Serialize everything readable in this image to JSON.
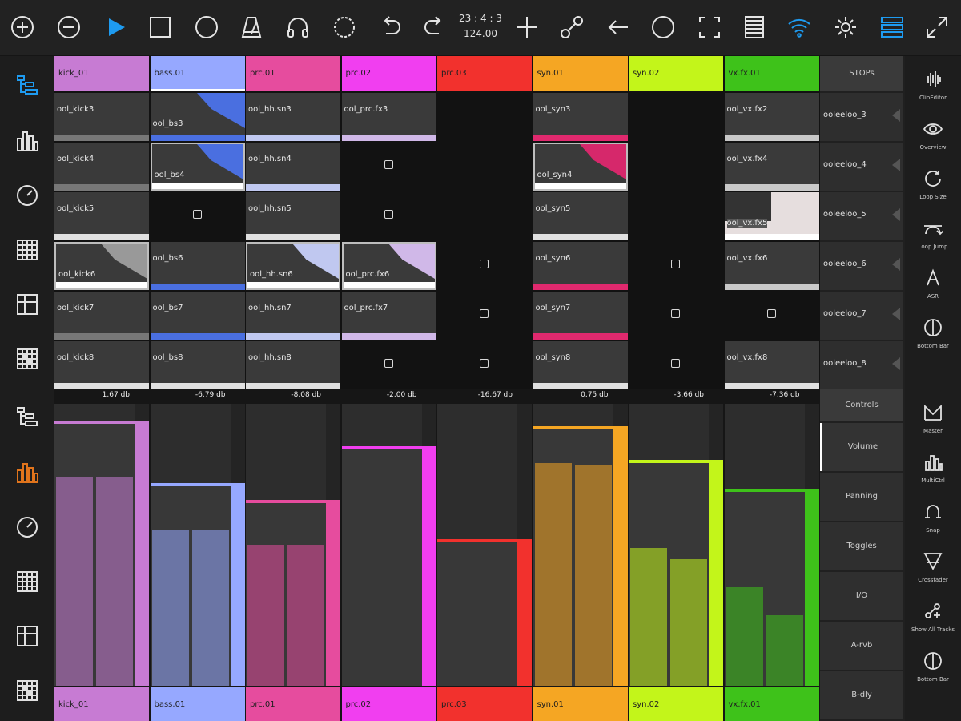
{
  "toolbar": {
    "icons": [
      "add-icon",
      "remove-icon",
      "play-icon",
      "stop-icon",
      "record-icon",
      "metronome-icon",
      "headphones-icon",
      "count-in-icon",
      "undo-icon",
      "redo-icon",
      "clock",
      "add-track-icon",
      "link-icon",
      "back-arrow-icon",
      "circle-icon",
      "fullscreen-select-icon",
      "list-icon",
      "wifi-icon",
      "settings-icon",
      "menu-icon",
      "expand-icon"
    ],
    "clock_position": "23 : 4 : 3",
    "clock_bpm": "124.00",
    "play_color": "#1e9bf0",
    "wifi_color": "#1e9bf0",
    "menu_color": "#1e9bf0"
  },
  "stop_all_label": "STOPs",
  "tracks": [
    {
      "name": "kick_01",
      "color": "#c77bd3",
      "selected": false
    },
    {
      "name": "bass.01",
      "color": "#96a8ff",
      "selected": true
    },
    {
      "name": "prc.01",
      "color": "#e64c9e",
      "selected": false
    },
    {
      "name": "prc.02",
      "color": "#f13ef0",
      "selected": false
    },
    {
      "name": "prc.03",
      "color": "#f2312d",
      "selected": false
    },
    {
      "name": "syn.01",
      "color": "#f5a623",
      "selected": false
    },
    {
      "name": "syn.02",
      "color": "#c3f51a",
      "selected": false
    },
    {
      "name": "vx.fx.01",
      "color": "#3ec21a",
      "selected": false
    }
  ],
  "clips": [
    [
      {
        "type": "clip",
        "label": "ool_kick3",
        "bar": "#777777"
      },
      {
        "type": "clip",
        "label": "ool_kick4",
        "bar": "#777777"
      },
      {
        "type": "clip",
        "label": "ool_kick5",
        "bar": "#e0e0e0"
      },
      {
        "type": "clip",
        "label": "ool_kick6",
        "bar": "#ffffff",
        "playing": true,
        "wave": "#999999"
      },
      {
        "type": "clip",
        "label": "ool_kick7",
        "bar": "#777777"
      },
      {
        "type": "clip",
        "label": "ool_kick8",
        "bar": "#e0e0e0"
      }
    ],
    [
      {
        "type": "clip",
        "label": "ool_bs3",
        "bar": "#4a6fe0",
        "wave": "#4a6fe0"
      },
      {
        "type": "clip",
        "label": "ool_bs4",
        "bar": "#ffffff",
        "playing": true,
        "wave": "#4a6fe0"
      },
      {
        "type": "slot"
      },
      {
        "type": "clip",
        "label": "ool_bs6",
        "bar": "#4a6fe0"
      },
      {
        "type": "clip",
        "label": "ool_bs7",
        "bar": "#4a6fe0"
      },
      {
        "type": "clip",
        "label": "ool_bs8",
        "bar": "#e0e0e0"
      }
    ],
    [
      {
        "type": "clip",
        "label": "ool_hh.sn3",
        "bar": "#c0c8f0"
      },
      {
        "type": "clip",
        "label": "ool_hh.sn4",
        "bar": "#c0c8f0"
      },
      {
        "type": "clip",
        "label": "ool_hh.sn5",
        "bar": "#e0e0e0"
      },
      {
        "type": "clip",
        "label": "ool_hh.sn6",
        "bar": "#ffffff",
        "playing": true,
        "wave": "#c0c8f0"
      },
      {
        "type": "clip",
        "label": "ool_hh.sn7",
        "bar": "#c0c8f0"
      },
      {
        "type": "clip",
        "label": "ool_hh.sn8",
        "bar": "#e0e0e0"
      }
    ],
    [
      {
        "type": "clip",
        "label": "ool_prc.fx3",
        "bar": "#d0b8e8"
      },
      {
        "type": "slot"
      },
      {
        "type": "slot"
      },
      {
        "type": "clip",
        "label": "ool_prc.fx6",
        "bar": "#ffffff",
        "playing": true,
        "wave": "#d0b8e8"
      },
      {
        "type": "clip",
        "label": "ool_prc.fx7",
        "bar": "#d0b8e8"
      },
      {
        "type": "slot"
      }
    ],
    [
      {
        "type": "empty"
      },
      {
        "type": "empty"
      },
      {
        "type": "empty"
      },
      {
        "type": "slot"
      },
      {
        "type": "slot"
      },
      {
        "type": "slot"
      }
    ],
    [
      {
        "type": "clip",
        "label": "ool_syn3",
        "bar": "#e0296e"
      },
      {
        "type": "clip",
        "label": "ool_syn4",
        "bar": "#ffffff",
        "playing": true,
        "wave": "#d6286b"
      },
      {
        "type": "clip",
        "label": "ool_syn5",
        "bar": "#e0e0e0"
      },
      {
        "type": "clip",
        "label": "ool_syn6",
        "bar": "#e0296e"
      },
      {
        "type": "clip",
        "label": "ool_syn7",
        "bar": "#e0296e"
      },
      {
        "type": "clip",
        "label": "ool_syn8",
        "bar": "#e0e0e0"
      }
    ],
    [
      {
        "type": "empty"
      },
      {
        "type": "empty"
      },
      {
        "type": "empty"
      },
      {
        "type": "slot"
      },
      {
        "type": "slot"
      },
      {
        "type": "slot"
      }
    ],
    [
      {
        "type": "clip",
        "label": "ool_vx.fx2",
        "bar": "#c8c8c8"
      },
      {
        "type": "clip",
        "label": "ool_vx.fx4",
        "bar": "#c8c8c8"
      },
      {
        "type": "clip",
        "label": "ool_vx.fx5",
        "bar": "#ffffff",
        "highlight": true
      },
      {
        "type": "clip",
        "label": "ool_vx.fx6",
        "bar": "#c8c8c8"
      },
      {
        "type": "slot"
      },
      {
        "type": "clip",
        "label": "ool_vx.fx8",
        "bar": "#e0e0e0"
      }
    ]
  ],
  "scenes": [
    "ooleeloo_3",
    "ooleeloo_4",
    "ooleeloo_5",
    "ooleeloo_6",
    "ooleeloo_7",
    "ooleeloo_8"
  ],
  "mixer": {
    "strips": [
      {
        "db": "1.67 db",
        "volume": 0.94,
        "meter_l": 0.74,
        "meter_r": 0.74
      },
      {
        "db": "-6.79 db",
        "volume": 0.72,
        "meter_l": 0.55,
        "meter_r": 0.55
      },
      {
        "db": "-8.08 db",
        "volume": 0.66,
        "meter_l": 0.5,
        "meter_r": 0.5
      },
      {
        "db": "-2.00 db",
        "volume": 0.85,
        "meter_l": 0,
        "meter_r": 0
      },
      {
        "db": "-16.67 db",
        "volume": 0.52,
        "meter_l": 0,
        "meter_r": 0
      },
      {
        "db": "0.75 db",
        "volume": 0.92,
        "meter_l": 0.79,
        "meter_r": 0.78
      },
      {
        "db": "-3.66 db",
        "volume": 0.8,
        "meter_l": 0.49,
        "meter_r": 0.45
      },
      {
        "db": "-7.36 db",
        "volume": 0.7,
        "meter_l": 0.35,
        "meter_r": 0.25
      }
    ],
    "controls": [
      "Controls",
      "Volume",
      "Panning",
      "Toggles",
      "I/O",
      "A-rvb",
      "B-dly"
    ],
    "active_control": "Volume"
  },
  "left_sidebar_icons": [
    "session-icon",
    "mixer-icon",
    "dial-icon",
    "drum-pads-icon",
    "grid-icon",
    "sequencer-icon"
  ],
  "right_top": [
    {
      "label": "ClipEditor",
      "icon": "waveform-icon"
    },
    {
      "label": "Overview",
      "icon": "eye-icon"
    },
    {
      "label": "Loop Size",
      "icon": "loop-icon"
    },
    {
      "label": "Loop Jump",
      "icon": "jump-icon"
    },
    {
      "label": "ASR",
      "icon": "asr-icon"
    },
    {
      "label": "Bottom Bar",
      "icon": "bottom-bar-icon"
    }
  ],
  "right_bottom": [
    {
      "label": "Master",
      "icon": "master-icon"
    },
    {
      "label": "MultiCtrl",
      "icon": "multi-ctrl-icon"
    },
    {
      "label": "Snap",
      "icon": "magnet-icon"
    },
    {
      "label": "Crossfader",
      "icon": "crossfader-icon"
    },
    {
      "label": "Show All Tracks",
      "icon": "show-tracks-icon"
    },
    {
      "label": "Bottom Bar",
      "icon": "bottom-bar-icon"
    }
  ]
}
